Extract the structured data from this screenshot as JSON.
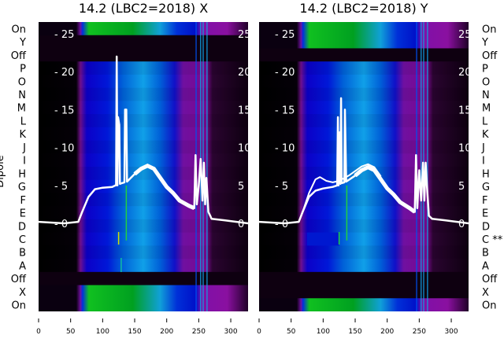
{
  "chart_data": [
    {
      "type": "heatmap",
      "title": "14.2 (LBC2=2018) X",
      "ylabel": "Dipole",
      "xlabel": "",
      "xlim": [
        0,
        327
      ],
      "x_ticks": [
        "0",
        "50",
        "100",
        "150",
        "200",
        "250",
        "300"
      ],
      "x_tick_values": [
        0,
        50,
        100,
        150,
        200,
        250,
        300
      ],
      "row_labels": [
        "On",
        "Y",
        "Off",
        "P",
        "O",
        "N",
        "M",
        "L",
        "K",
        "J",
        "I",
        "H",
        "G",
        "F",
        "E",
        "D",
        "C",
        "B",
        "A",
        "Off",
        "X",
        "On"
      ],
      "row_states": [
        "on",
        "off",
        "off",
        "dipole",
        "dipole",
        "dipole",
        "dipole",
        "dipole",
        "dipole",
        "dipole",
        "dipole",
        "dipole",
        "dipole",
        "dipole",
        "dipole",
        "dipole",
        "dipole",
        "dipole",
        "dipole",
        "off",
        "on",
        "on"
      ],
      "overlay_ylim": [
        0,
        25
      ],
      "overlay_ticks": [
        "0",
        "5",
        "10",
        "15",
        "20",
        "25"
      ],
      "overlay_tick_values": [
        0,
        5,
        10,
        15,
        20,
        25
      ],
      "series": [
        {
          "name": "spectrum",
          "color": "#ffffff",
          "points": [
            [
              0,
              0.2
            ],
            [
              40,
              0
            ],
            [
              62,
              0.2
            ],
            [
              68,
              1.5
            ],
            [
              78,
              3.5
            ],
            [
              88,
              4.5
            ],
            [
              100,
              4.7
            ],
            [
              115,
              4.8
            ],
            [
              120,
              5
            ],
            [
              121,
              5
            ],
            [
              122,
              22
            ],
            [
              123,
              5
            ],
            [
              124,
              14
            ],
            [
              126,
              13
            ],
            [
              127,
              5.2
            ],
            [
              130,
              5.3
            ],
            [
              134,
              5.4
            ],
            [
              135,
              15
            ],
            [
              137,
              15
            ],
            [
              138,
              5.5
            ],
            [
              150,
              6.5
            ],
            [
              160,
              7.2
            ],
            [
              170,
              7.6
            ],
            [
              180,
              7.2
            ],
            [
              190,
              6
            ],
            [
              200,
              4.8
            ],
            [
              210,
              4
            ],
            [
              220,
              3
            ],
            [
              235,
              2.3
            ],
            [
              243,
              2
            ],
            [
              245,
              9
            ],
            [
              247,
              2.5
            ],
            [
              250,
              5
            ],
            [
              253,
              8.5
            ],
            [
              256,
              3
            ],
            [
              258,
              8
            ],
            [
              260,
              2.5
            ],
            [
              262,
              6
            ],
            [
              265,
              1.5
            ],
            [
              268,
              1
            ],
            [
              270,
              0.6
            ],
            [
              290,
              0.4
            ],
            [
              327,
              0
            ]
          ]
        }
      ]
    },
    {
      "type": "heatmap",
      "title": "14.2 (LBC2=2018) Y",
      "xlim": [
        0,
        327
      ],
      "x_ticks": [
        "0",
        "50",
        "100",
        "150",
        "200",
        "250",
        "300"
      ],
      "x_tick_values": [
        0,
        50,
        100,
        150,
        200,
        250,
        300
      ],
      "row_labels": [
        "On",
        "Y",
        "Off",
        "P",
        "O",
        "N",
        "M",
        "L",
        "K",
        "J",
        "I",
        "H",
        "G",
        "F",
        "E",
        "D",
        "C **",
        "B",
        "A",
        "Off",
        "X",
        "On"
      ],
      "row_states": [
        "on",
        "on",
        "off",
        "dipole",
        "dipole",
        "dipole",
        "dipole",
        "dipole",
        "dipole",
        "dipole",
        "dipole",
        "dipole",
        "dipole",
        "dipole",
        "dipole",
        "dipole",
        "dipole",
        "dipole",
        "dipole",
        "off",
        "off",
        "on"
      ],
      "overlay_ylim": [
        0,
        25
      ],
      "overlay_ticks": [
        "0",
        "5",
        "10",
        "15",
        "20",
        "25"
      ],
      "overlay_tick_values": [
        0,
        5,
        10,
        15,
        20,
        25
      ],
      "series": [
        {
          "name": "spectrum",
          "color": "#ffffff",
          "points": [
            [
              0,
              0.2
            ],
            [
              40,
              0
            ],
            [
              62,
              0.2
            ],
            [
              68,
              1.5
            ],
            [
              78,
              3.5
            ],
            [
              88,
              4.3
            ],
            [
              100,
              4.6
            ],
            [
              115,
              4.8
            ],
            [
              122,
              5
            ],
            [
              123,
              14
            ],
            [
              124,
              5
            ],
            [
              126,
              12
            ],
            [
              127,
              5.2
            ],
            [
              128,
              16.5
            ],
            [
              129,
              5.3
            ],
            [
              133,
              5.4
            ],
            [
              134,
              15
            ],
            [
              136,
              5.5
            ],
            [
              150,
              6.3
            ],
            [
              160,
              7
            ],
            [
              170,
              7.4
            ],
            [
              180,
              7
            ],
            [
              190,
              5.8
            ],
            [
              200,
              4.6
            ],
            [
              210,
              3.8
            ],
            [
              220,
              2.8
            ],
            [
              235,
              2
            ],
            [
              243,
              1.5
            ],
            [
              245,
              9
            ],
            [
              247,
              2
            ],
            [
              250,
              7
            ],
            [
              253,
              3
            ],
            [
              256,
              8
            ],
            [
              258,
              3
            ],
            [
              260,
              8
            ],
            [
              262,
              5
            ],
            [
              265,
              1
            ],
            [
              270,
              0.6
            ],
            [
              290,
              0.4
            ],
            [
              327,
              0
            ]
          ]
        },
        {
          "name": "spectrum-2",
          "color": "#ffffff",
          "points": [
            [
              68,
              1.5
            ],
            [
              78,
              4
            ],
            [
              88,
              5.8
            ],
            [
              95,
              6.1
            ],
            [
              105,
              5.6
            ],
            [
              115,
              5.4
            ],
            [
              125,
              5.6
            ],
            [
              140,
              6.3
            ],
            [
              160,
              7.5
            ],
            [
              170,
              7.8
            ],
            [
              180,
              7.4
            ],
            [
              190,
              6.2
            ]
          ]
        }
      ]
    }
  ]
}
